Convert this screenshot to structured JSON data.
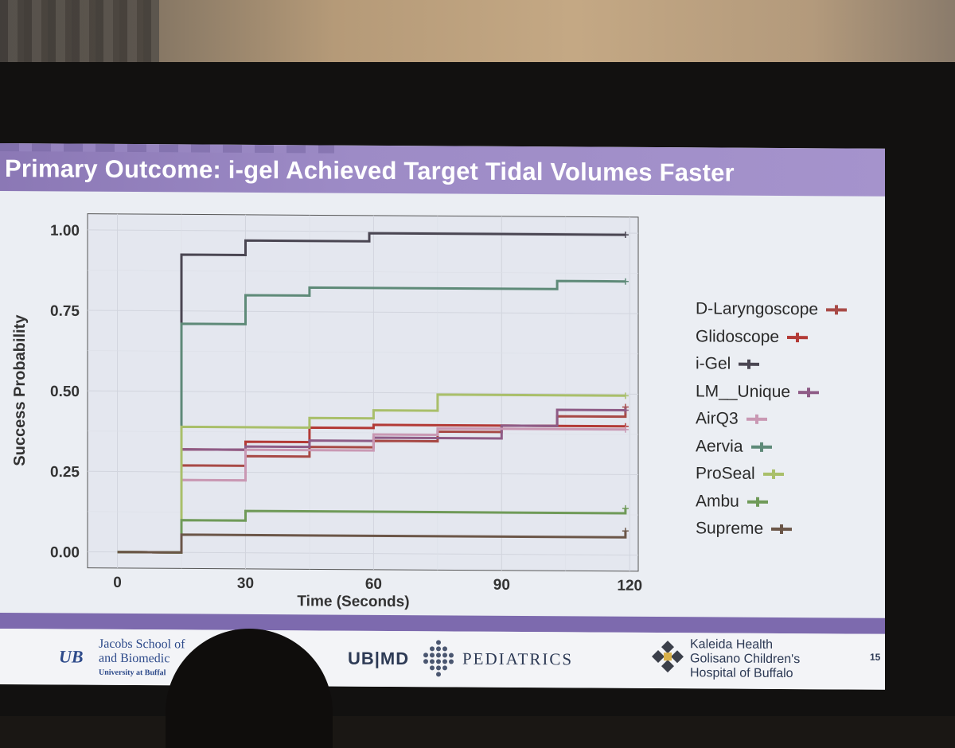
{
  "slide": {
    "title": "Primary Outcome: i-gel Achieved Target Tidal Volumes Faster",
    "page_number": "15"
  },
  "footer": {
    "ub_logo": "UB",
    "jacobs_line1": "Jacobs School of",
    "jacobs_line2": "and Biomedic",
    "jacobs_line3": "University at Buffal",
    "ubmd": "UB|MD",
    "pediatrics": "PEDIATRICS",
    "kaleida_line1": "Kaleida Health",
    "kaleida_line2": "Golisano Children's",
    "kaleida_line3": "Hospital of Buffalo"
  },
  "chart_data": {
    "type": "line",
    "step": true,
    "xlabel": "Time (Seconds)",
    "ylabel": "Success Probability",
    "xlim": [
      -7,
      122
    ],
    "ylim": [
      -0.05,
      1.05
    ],
    "x_ticks": [
      0,
      30,
      60,
      90,
      120
    ],
    "y_ticks": [
      0.0,
      0.25,
      0.5,
      0.75,
      1.0
    ],
    "x_tick_labels": [
      "0",
      "30",
      "60",
      "90",
      "120"
    ],
    "y_tick_labels": [
      "0.00",
      "0.25",
      "0.50",
      "0.75",
      "1.00"
    ],
    "grid": true,
    "legend_position": "right",
    "series": [
      {
        "name": "D-Laryngoscope",
        "color": "#a84a46",
        "points": [
          [
            0,
            0
          ],
          [
            15,
            0
          ],
          [
            15,
            0.27
          ],
          [
            30,
            0.27
          ],
          [
            30,
            0.3
          ],
          [
            45,
            0.3
          ],
          [
            45,
            0.33
          ],
          [
            60,
            0.33
          ],
          [
            60,
            0.35
          ],
          [
            75,
            0.35
          ],
          [
            75,
            0.38
          ],
          [
            90,
            0.38
          ],
          [
            90,
            0.4
          ],
          [
            103,
            0.4
          ],
          [
            103,
            0.43
          ],
          [
            119,
            0.43
          ],
          [
            119,
            0.46
          ]
        ]
      },
      {
        "name": "Glidoscope",
        "color": "#b33a36",
        "points": [
          [
            0,
            0
          ],
          [
            15,
            0
          ],
          [
            15,
            0.32
          ],
          [
            30,
            0.32
          ],
          [
            30,
            0.345
          ],
          [
            45,
            0.345
          ],
          [
            45,
            0.39
          ],
          [
            60,
            0.39
          ],
          [
            60,
            0.4
          ],
          [
            119,
            0.4
          ]
        ]
      },
      {
        "name": "i-Gel",
        "color": "#4a4652",
        "points": [
          [
            0,
            0
          ],
          [
            15,
            0
          ],
          [
            15,
            0.925
          ],
          [
            30,
            0.925
          ],
          [
            30,
            0.97
          ],
          [
            59,
            0.97
          ],
          [
            59,
            0.995
          ],
          [
            119,
            0.995
          ]
        ]
      },
      {
        "name": "LM__Unique",
        "color": "#8e5b86",
        "points": [
          [
            0,
            0
          ],
          [
            15,
            0
          ],
          [
            15,
            0.32
          ],
          [
            30,
            0.32
          ],
          [
            30,
            0.33
          ],
          [
            45,
            0.33
          ],
          [
            45,
            0.35
          ],
          [
            60,
            0.35
          ],
          [
            60,
            0.36
          ],
          [
            90,
            0.36
          ],
          [
            90,
            0.4
          ],
          [
            103,
            0.4
          ],
          [
            103,
            0.45
          ],
          [
            119,
            0.45
          ]
        ]
      },
      {
        "name": "AirQ3",
        "color": "#c998b3",
        "points": [
          [
            0,
            0
          ],
          [
            15,
            0
          ],
          [
            15,
            0.225
          ],
          [
            30,
            0.225
          ],
          [
            30,
            0.32
          ],
          [
            60,
            0.32
          ],
          [
            60,
            0.37
          ],
          [
            75,
            0.37
          ],
          [
            75,
            0.39
          ],
          [
            119,
            0.39
          ]
        ]
      },
      {
        "name": "Aervia",
        "color": "#5e8a78",
        "points": [
          [
            0,
            0
          ],
          [
            15,
            0
          ],
          [
            15,
            0.71
          ],
          [
            30,
            0.71
          ],
          [
            30,
            0.8
          ],
          [
            45,
            0.8
          ],
          [
            45,
            0.825
          ],
          [
            103,
            0.825
          ],
          [
            103,
            0.85
          ],
          [
            119,
            0.85
          ]
        ]
      },
      {
        "name": "ProSeal",
        "color": "#a9bf6a",
        "points": [
          [
            0,
            0
          ],
          [
            15,
            0
          ],
          [
            15,
            0.39
          ],
          [
            45,
            0.39
          ],
          [
            45,
            0.42
          ],
          [
            60,
            0.42
          ],
          [
            60,
            0.445
          ],
          [
            75,
            0.445
          ],
          [
            75,
            0.495
          ],
          [
            119,
            0.495
          ]
        ]
      },
      {
        "name": "Ambu",
        "color": "#6f9a58",
        "points": [
          [
            0,
            0
          ],
          [
            15,
            0
          ],
          [
            15,
            0.1
          ],
          [
            30,
            0.1
          ],
          [
            30,
            0.13
          ],
          [
            119,
            0.13
          ],
          [
            119,
            0.145
          ]
        ]
      },
      {
        "name": "Supreme",
        "color": "#6b5648",
        "points": [
          [
            0,
            0
          ],
          [
            15,
            0
          ],
          [
            15,
            0.055
          ],
          [
            119,
            0.055
          ],
          [
            119,
            0.075
          ]
        ]
      }
    ]
  }
}
